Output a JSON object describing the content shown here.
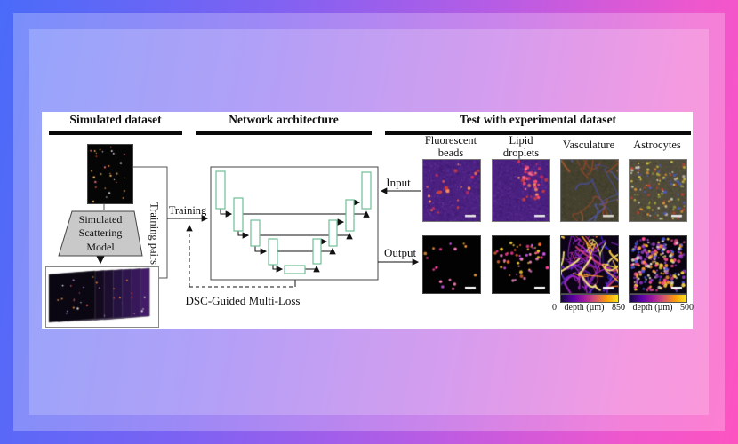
{
  "figure": {
    "sections": [
      {
        "title": "Simulated dataset"
      },
      {
        "title": "Network architecture"
      },
      {
        "title": "Test with experimental dataset"
      }
    ]
  },
  "simulated": {
    "model_lines": [
      "Simulated",
      "Scattering",
      "Model"
    ],
    "training_pairs_label": "Training pairs"
  },
  "network": {
    "training_label": "Training",
    "loss_label": "DSC-Guided Multi-Loss",
    "block_border_color": "#6fbf96"
  },
  "test": {
    "input_label": "Input",
    "output_label": "Output",
    "columns": [
      {
        "label": "Fluorescent beads"
      },
      {
        "label": "Lipid droplets"
      },
      {
        "label": "Vasculature"
      },
      {
        "label": "Astrocytes"
      }
    ],
    "colorbars": [
      {
        "column": "Vasculature",
        "min": "0",
        "unit": "depth (µm)",
        "max": "850"
      },
      {
        "column": "Astrocytes",
        "min": "0",
        "unit": "depth (µm)",
        "max": "500"
      }
    ],
    "colorbar_gradient": [
      "#15083d",
      "#5601a4",
      "#9c179e",
      "#d5546e",
      "#fb9b06",
      "#f7e225"
    ]
  },
  "colors": {
    "header_bar": "#0a0a0a",
    "panel_bg": "#ffffff",
    "line": "#222222"
  },
  "thumbnails": {
    "sim_square": {
      "style": "dots",
      "bg": "#050505",
      "n": 30,
      "r0": 0.6,
      "r1": 1.3,
      "seed": 11,
      "palette": [
        "#ff9a40",
        "#ff5030",
        "#ffffff",
        "#ffc070",
        "#ff7a90"
      ]
    },
    "sim_stack": {
      "style": "stack",
      "bg": "#ffffff",
      "seed": 21,
      "sheets": [
        "#0b0712",
        "#140a20",
        "#1d0e30",
        "#261240",
        "#2f154e",
        "#38185a",
        "#421c68"
      ],
      "dotColors": [
        "#ff9a40",
        "#ffffff",
        "#ff5a60",
        "#d0a0ff"
      ]
    },
    "beads_in": {
      "style": "dots",
      "bg": "#4a2080",
      "n": 24,
      "r0": 1.0,
      "r1": 2.4,
      "seed": 31,
      "noise": {
        "n": 700,
        "colors": [
          "#8a50c0",
          "#2a1050"
        ]
      },
      "palette": [
        "#e04030",
        "#ff6a50",
        "#d03060",
        "#ff9060"
      ],
      "scalebar": "#e8e8e8"
    },
    "lipid_in": {
      "style": "dots",
      "bg": "#4a2080",
      "n": 42,
      "clusters": 3,
      "spread": 0.45,
      "r0": 1.0,
      "r1": 2.2,
      "seed": 41,
      "noise": {
        "n": 700,
        "colors": [
          "#8a50c0",
          "#2a1050"
        ]
      },
      "palette": [
        "#e04030",
        "#ff6a90",
        "#d03060",
        "#ff9060",
        "#ff4a70"
      ],
      "scalebar": "#e8e8e8"
    },
    "vasc_in": {
      "style": "vessels",
      "bg": "#45412f",
      "seed": 51,
      "noise": {
        "n": 500,
        "colors": [
          "#6a6550",
          "#2a271c"
        ]
      },
      "strokes": [
        {
          "n": 9,
          "palette": [
            "#c0622e",
            "#d07a3a",
            "#a84a28"
          ],
          "w": [
            0.8,
            2.2
          ],
          "alpha": 0.65
        },
        {
          "n": 7,
          "palette": [
            "#4a55c8",
            "#5a68e0"
          ],
          "w": [
            0.8,
            1.8
          ],
          "alpha": 0.55
        }
      ],
      "scalebar": "#d8d8d0"
    },
    "astro_in": {
      "style": "dots",
      "bg": "#514c3b",
      "n": 130,
      "r0": 0.8,
      "r1": 1.8,
      "seed": 61,
      "noise": {
        "n": 500,
        "colors": [
          "#75705c",
          "#35301f"
        ]
      },
      "palette": [
        "#c84030",
        "#e09030",
        "#d8c840",
        "#5058c0",
        "#d0cab8",
        "#90953a"
      ],
      "scalebar": "#e8e8e8"
    },
    "beads_out": {
      "style": "dots",
      "bg": "#020202",
      "n": 17,
      "r0": 1.0,
      "r1": 2.0,
      "seed": 71,
      "palette": [
        "#ff40a0",
        "#ff80c0",
        "#ffa040",
        "#e060ff"
      ],
      "scalebar": "#ffffff"
    },
    "lipid_out": {
      "style": "dots",
      "bg": "#020202",
      "n": 55,
      "clusters": 3,
      "spread": 0.5,
      "r0": 0.9,
      "r1": 2.0,
      "seed": 81,
      "palette": [
        "#ff40a0",
        "#ffd040",
        "#ff7030",
        "#ff90d0",
        "#e060ff"
      ],
      "scalebar": "#ffffff"
    },
    "vasc_out": {
      "style": "vessels",
      "bg": "#0d0418",
      "seed": 91,
      "strokes": [
        {
          "n": 16,
          "palette": [
            "#3a2ae0",
            "#6a30d8",
            "#9a2ad0"
          ],
          "w": [
            0.8,
            2.0
          ],
          "alpha": 0.8
        },
        {
          "n": 14,
          "palette": [
            "#e04080",
            "#b02ad0",
            "#ff8030"
          ],
          "w": [
            0.8,
            2.2
          ],
          "alpha": 0.85
        },
        {
          "n": 10,
          "palette": [
            "#ffd040",
            "#ffee80",
            "#ff9a30"
          ],
          "w": [
            1.0,
            2.6
          ],
          "alpha": 0.9
        }
      ],
      "scalebar": "#ffffff"
    },
    "astro_out": {
      "style": "dots",
      "bg": "#080410",
      "n": 230,
      "r0": 1.0,
      "r1": 2.2,
      "seed": 101,
      "palette": [
        "#ffd840",
        "#ff9a30",
        "#b050e0",
        "#e8e0d0",
        "#ff5090",
        "#5058e0",
        "#8a30c0"
      ],
      "scalebar": "#ffffff"
    }
  }
}
